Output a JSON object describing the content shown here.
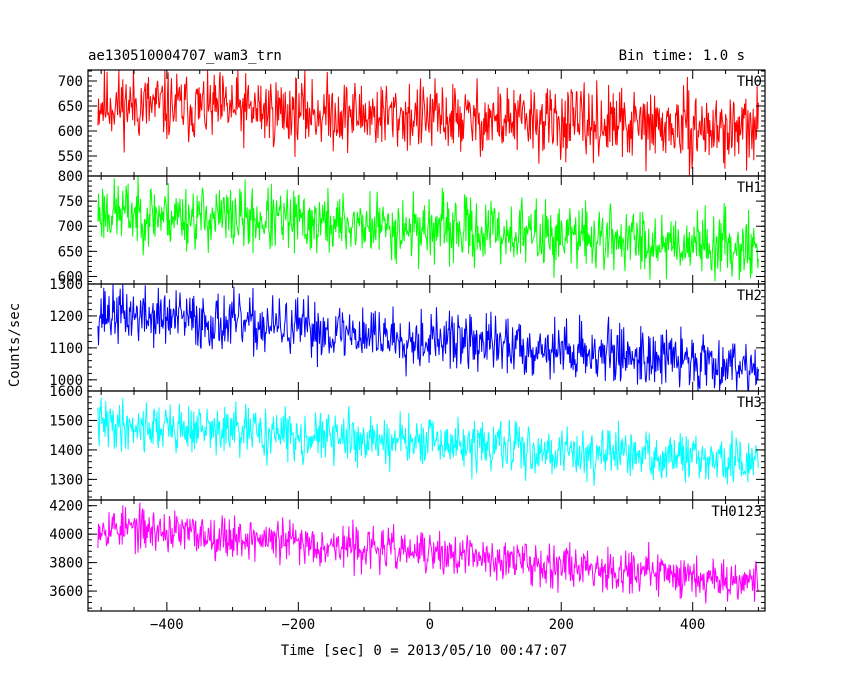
{
  "chart_data": [
    {
      "type": "line",
      "title": "ae130510004707_wam3_trn",
      "subtitle": "Bin time: 1.0 s",
      "series": [
        {
          "name": "TH0",
          "color": "#ff0000",
          "start": 655,
          "end": 600,
          "noise": 35,
          "seed": 11
        }
      ],
      "ylim": [
        510,
        722
      ],
      "yticks": [
        550,
        600,
        650,
        700
      ],
      "xlim": [
        -520,
        510
      ],
      "x_range": [
        -505,
        500
      ],
      "grid": false
    },
    {
      "type": "line",
      "series": [
        {
          "name": "TH1",
          "color": "#00ff00",
          "start": 730,
          "end": 660,
          "noise": 32,
          "seed": 23
        }
      ],
      "ylim": [
        585,
        800
      ],
      "yticks": [
        600,
        650,
        700,
        750,
        800
      ],
      "xlim": [
        -520,
        510
      ],
      "x_range": [
        -505,
        500
      ],
      "grid": false
    },
    {
      "type": "line",
      "series": [
        {
          "name": "TH2",
          "color": "#0000ff",
          "start": 1210,
          "end": 1045,
          "noise": 45,
          "seed": 37
        }
      ],
      "ylim": [
        965,
        1300
      ],
      "yticks": [
        1000,
        1100,
        1200,
        1300
      ],
      "xlim": [
        -520,
        510
      ],
      "x_range": [
        -505,
        500
      ],
      "grid": false
    },
    {
      "type": "line",
      "series": [
        {
          "name": "TH3",
          "color": "#00ffff",
          "start": 1490,
          "end": 1355,
          "noise": 42,
          "seed": 41
        }
      ],
      "ylim": [
        1230,
        1600
      ],
      "yticks": [
        1300,
        1400,
        1500,
        1600
      ],
      "xlim": [
        -520,
        510
      ],
      "x_range": [
        -505,
        500
      ],
      "grid": false
    },
    {
      "type": "line",
      "series": [
        {
          "name": "TH0123",
          "color": "#ff00ff",
          "start": 4060,
          "end": 3670,
          "noise": 75,
          "seed": 53
        }
      ],
      "ylim": [
        3460,
        4240
      ],
      "yticks": [
        3600,
        3800,
        4000,
        4200
      ],
      "xlim": [
        -520,
        510
      ],
      "x_range": [
        -505,
        500
      ],
      "xticks": [
        -400,
        -200,
        0,
        200,
        400
      ],
      "grid": false
    }
  ],
  "axes": {
    "ylabel": "Counts/sec",
    "xlabel": "Time [sec] 0 = 2013/05/10 00:47:07"
  }
}
